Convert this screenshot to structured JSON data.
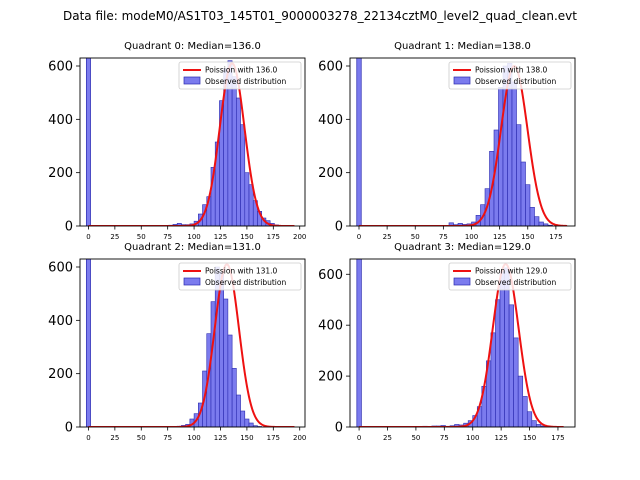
{
  "figure": {
    "suptitle": "Data file: modeM0/AS1T03_145T01_9000003278_22134cztM0_level2_quad_clean.evt",
    "colors": {
      "bar_fill": "#7b7bee",
      "bar_edge": "#2b2bb0",
      "curve": "#ee1111",
      "axis": "#000000"
    }
  },
  "chart_data": [
    {
      "type": "bar",
      "title": "Quadrant 0: Median=136.0",
      "median": 136.0,
      "xlim": [
        -8,
        205
      ],
      "xticks": [
        0,
        25,
        50,
        75,
        100,
        125,
        150,
        175,
        200
      ],
      "ylim": [
        0,
        630
      ],
      "yticks": [
        0,
        200,
        400,
        600
      ],
      "legend": {
        "position": "top-right",
        "curve_label": "Poission with 136.0",
        "bars_label": "Observed distribution"
      },
      "spike": {
        "x": 0,
        "width": 4,
        "value": 2500
      },
      "bins": {
        "start": 76,
        "width": 4,
        "values": [
          3,
          6,
          10,
          5,
          5,
          8,
          18,
          45,
          80,
          110,
          220,
          315,
          470,
          590,
          620,
          560,
          480,
          380,
          200,
          155,
          95,
          55,
          30,
          20,
          10,
          4,
          2
        ]
      },
      "curve": {
        "mean": 136.0,
        "sd": 11.66,
        "peak": 610,
        "x_range": [
          0,
          195
        ]
      }
    },
    {
      "type": "bar",
      "title": "Quadrant 1: Median=138.0",
      "median": 138.0,
      "xlim": [
        -8,
        192
      ],
      "xticks": [
        0,
        25,
        50,
        75,
        100,
        125,
        150,
        175
      ],
      "ylim": [
        0,
        630
      ],
      "yticks": [
        0,
        200,
        400,
        600
      ],
      "legend": {
        "position": "top-right",
        "curve_label": "Poission with 138.0",
        "bars_label": "Observed distribution"
      },
      "spike": {
        "x": 0,
        "width": 4,
        "value": 2500
      },
      "bins": {
        "start": 80,
        "width": 4,
        "values": [
          12,
          5,
          10,
          6,
          8,
          15,
          40,
          80,
          140,
          280,
          360,
          520,
          600,
          610,
          540,
          380,
          240,
          155,
          70,
          35,
          15,
          8,
          3
        ]
      },
      "curve": {
        "mean": 138.0,
        "sd": 11.75,
        "peak": 600,
        "x_range": [
          0,
          185
        ]
      }
    },
    {
      "type": "bar",
      "title": "Quadrant 2: Median=131.0",
      "median": 131.0,
      "xlim": [
        -8,
        205
      ],
      "xticks": [
        0,
        25,
        50,
        75,
        100,
        125,
        150,
        175,
        200
      ],
      "ylim": [
        0,
        630
      ],
      "yticks": [
        0,
        200,
        400,
        600
      ],
      "legend": {
        "position": "top-right",
        "curve_label": "Poission with 131.0",
        "bars_label": "Observed distribution"
      },
      "spike": {
        "x": 0,
        "width": 4,
        "value": 2500
      },
      "bins": {
        "start": 84,
        "width": 4,
        "values": [
          3,
          6,
          10,
          30,
          50,
          90,
          210,
          350,
          470,
          600,
          580,
          480,
          345,
          220,
          120,
          60,
          30,
          15,
          5,
          2
        ]
      },
      "curve": {
        "mean": 131.0,
        "sd": 11.45,
        "peak": 610,
        "x_range": [
          0,
          195
        ]
      }
    },
    {
      "type": "bar",
      "title": "Quadrant 3: Median=129.0",
      "median": 129.0,
      "xlim": [
        -8,
        190
      ],
      "xticks": [
        0,
        25,
        50,
        75,
        100,
        125,
        150,
        175
      ],
      "ylim": [
        0,
        660
      ],
      "yticks": [
        0,
        200,
        400,
        600
      ],
      "legend": {
        "position": "top-right",
        "curve_label": "Poission with 129.0",
        "bars_label": "Observed distribution"
      },
      "spike": {
        "x": 0,
        "width": 4,
        "value": 2500
      },
      "bins": {
        "start": 56,
        "width": 4,
        "values": [
          3,
          2,
          4,
          4,
          6,
          3,
          5,
          10,
          8,
          15,
          25,
          45,
          80,
          160,
          260,
          370,
          500,
          610,
          625,
          480,
          350,
          200,
          120,
          60,
          25,
          10,
          4
        ]
      },
      "curve": {
        "mean": 129.0,
        "sd": 11.36,
        "peak": 640,
        "x_range": [
          0,
          180
        ]
      }
    }
  ]
}
